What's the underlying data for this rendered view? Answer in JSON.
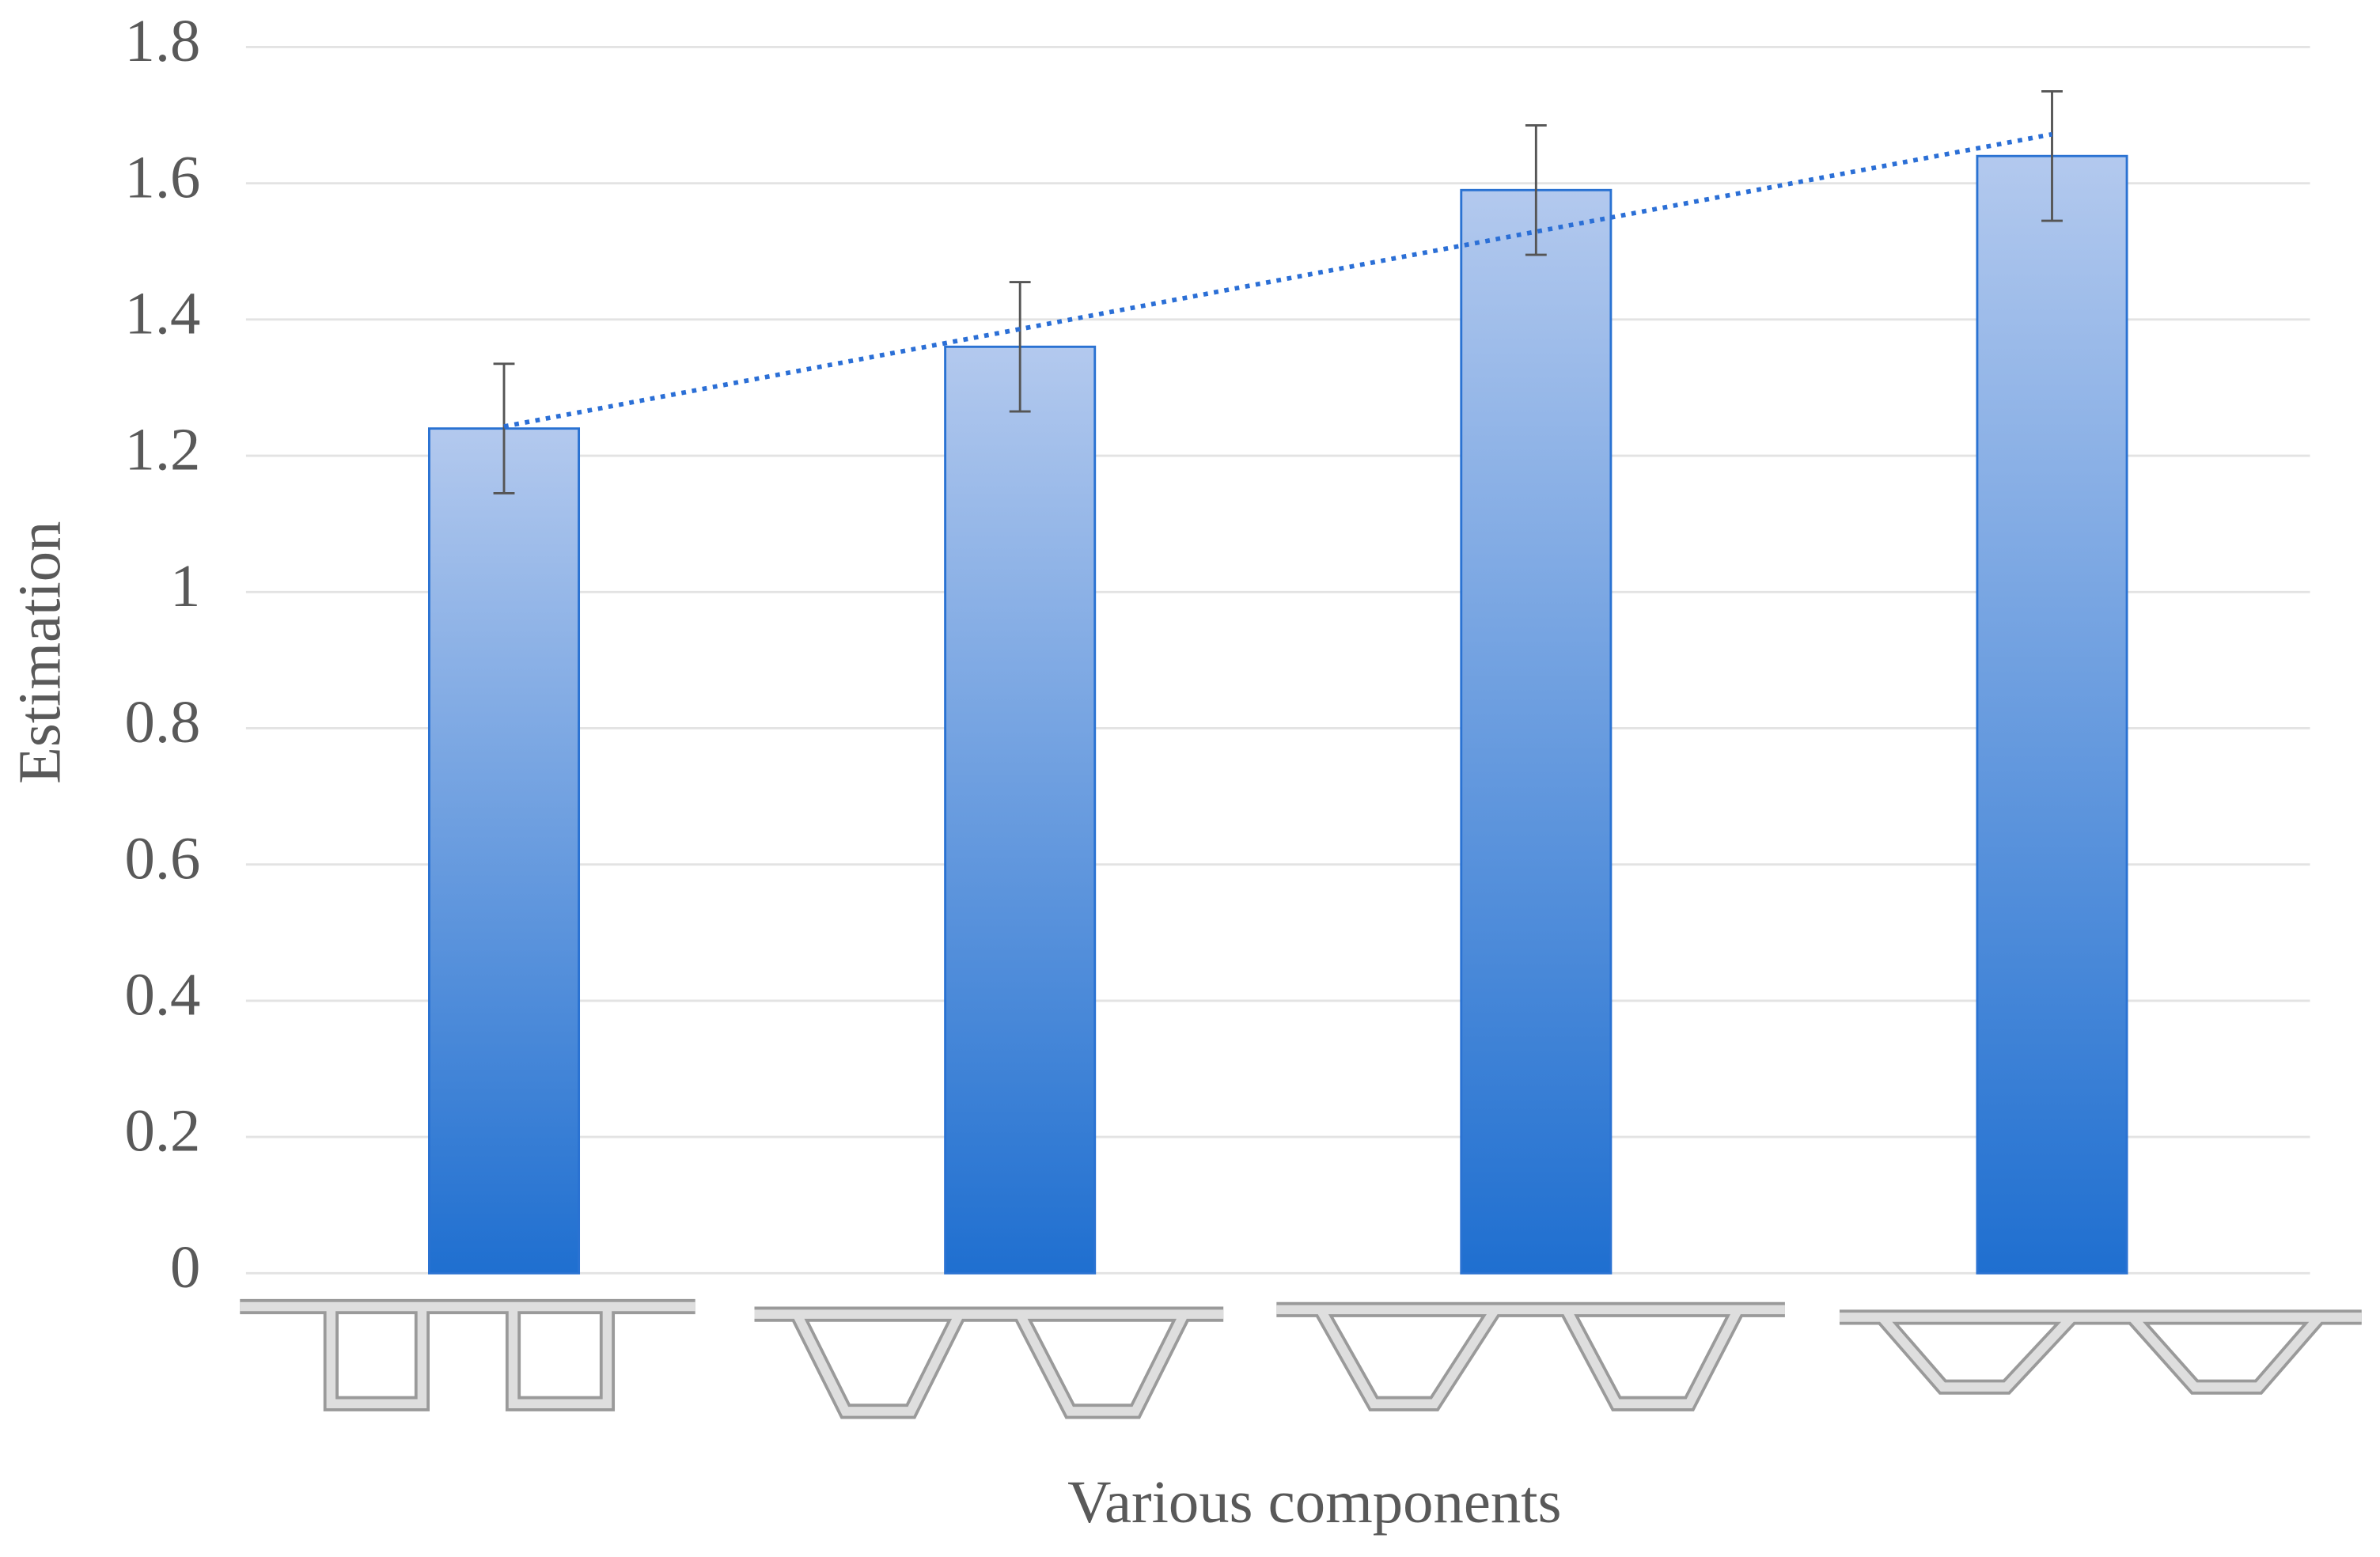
{
  "chart_data": {
    "type": "bar",
    "x_label": "Various components",
    "y_label": "Estimation",
    "categories": [
      null,
      null,
      null,
      null
    ],
    "values": [
      1.24,
      1.36,
      1.59,
      1.64
    ],
    "errors": [
      0.095,
      0.095,
      0.095,
      0.095
    ],
    "color": "#2a72d2",
    "trendline": true,
    "trendline_color": "#2b6fd6",
    "ylim": [
      0,
      1.8
    ],
    "yticks": [
      0,
      0.2,
      0.4,
      0.6,
      0.8,
      1,
      1.2,
      1.4,
      1.6,
      1.8
    ],
    "grid": true
  }
}
